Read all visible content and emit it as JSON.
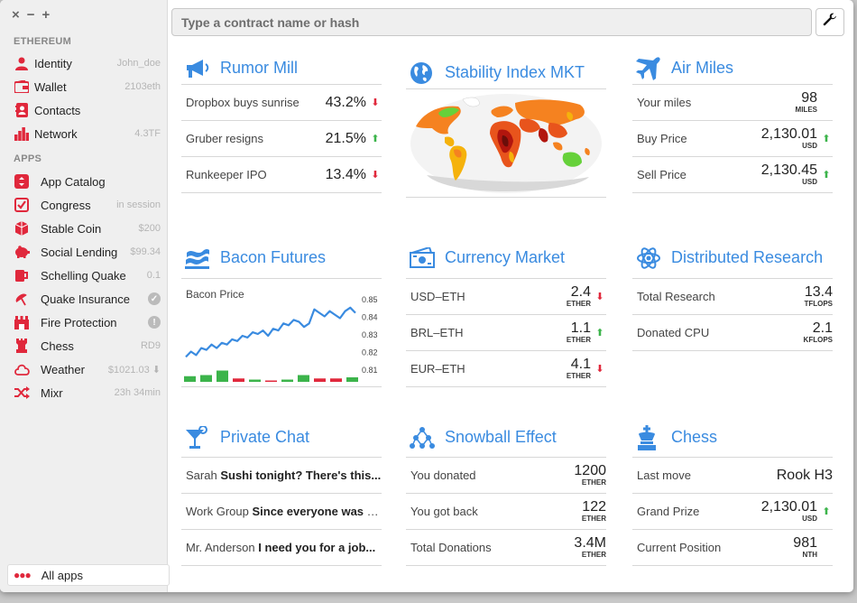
{
  "window": {
    "controls": [
      "×",
      "−",
      "+"
    ]
  },
  "sidebar": {
    "ethereum_title": "ETHEREUM",
    "eth_items": [
      {
        "label": "Identity",
        "value": "John_doe",
        "icon": "person-icon"
      },
      {
        "label": "Wallet",
        "value": "2103eth",
        "icon": "wallet-icon"
      },
      {
        "label": "Contacts",
        "value": "",
        "icon": "contacts-icon"
      },
      {
        "label": "Network",
        "value": "4.3TF",
        "icon": "bars-icon"
      }
    ],
    "apps_title": "APPS",
    "app_items": [
      {
        "label": "App Catalog",
        "value": "",
        "icon": "catalog-icon"
      },
      {
        "label": "Congress",
        "value": "in session",
        "icon": "check-icon"
      },
      {
        "label": "Stable Coin",
        "value": "$200",
        "icon": "coin-icon"
      },
      {
        "label": "Social Lending",
        "value": "$99.34",
        "icon": "piggy-icon"
      },
      {
        "label": "Schelling Quake",
        "value": "0.1",
        "icon": "mug-icon"
      },
      {
        "label": "Quake Insurance",
        "value": "✓",
        "icon": "umbrella-icon"
      },
      {
        "label": "Fire Protection",
        "value": "!",
        "icon": "fire-icon"
      },
      {
        "label": "Chess",
        "value": "RD9",
        "icon": "rook-icon"
      },
      {
        "label": "Weather",
        "value": "$1021.03 ⬇",
        "icon": "cloud-icon"
      },
      {
        "label": "Mixr",
        "value": "23h 34min",
        "icon": "shuffle-icon"
      }
    ],
    "all_apps_label": "All apps"
  },
  "search": {
    "placeholder": "Type a contract name or hash"
  },
  "panels": {
    "rumor": {
      "title": "Rumor Mill",
      "rows": [
        {
          "label": "Dropbox buys sunrise",
          "value": "43.2%",
          "dir": "down"
        },
        {
          "label": "Gruber resigns",
          "value": "21.5%",
          "dir": "up"
        },
        {
          "label": "Runkeeper IPO",
          "value": "13.4%",
          "dir": "down"
        }
      ]
    },
    "stability": {
      "title": "Stability Index MKT"
    },
    "airmiles": {
      "title": "Air Miles",
      "rows": [
        {
          "label": "Your miles",
          "value": "98",
          "unit": "MILES",
          "dir": ""
        },
        {
          "label": "Buy Price",
          "value": "2,130.01",
          "unit": "USD",
          "dir": "up"
        },
        {
          "label": "Sell Price",
          "value": "2,130.45",
          "unit": "USD",
          "dir": "up"
        }
      ]
    },
    "bacon": {
      "title": "Bacon Futures",
      "label": "Bacon Price",
      "ticks": [
        "0.85",
        "0.84",
        "0.83",
        "0.82",
        "0.81"
      ],
      "line": [
        0.817,
        0.82,
        0.818,
        0.822,
        0.821,
        0.824,
        0.822,
        0.825,
        0.824,
        0.827,
        0.826,
        0.829,
        0.828,
        0.831,
        0.83,
        0.832,
        0.829,
        0.833,
        0.832,
        0.836,
        0.835,
        0.838,
        0.837,
        0.834,
        0.836,
        0.844,
        0.842,
        0.84,
        0.843,
        0.841,
        0.839,
        0.843,
        0.845,
        0.842
      ],
      "bars": [
        {
          "v": 5,
          "c": "#3cb44b"
        },
        {
          "v": 6,
          "c": "#3cb44b"
        },
        {
          "v": 10,
          "c": "#3cb44b"
        },
        {
          "v": -3,
          "c": "#e0283c"
        },
        {
          "v": 2,
          "c": "#3cb44b"
        },
        {
          "v": -1,
          "c": "#e0283c"
        },
        {
          "v": 2,
          "c": "#3cb44b"
        },
        {
          "v": 6,
          "c": "#3cb44b"
        },
        {
          "v": -3,
          "c": "#e0283c"
        },
        {
          "v": -3,
          "c": "#e0283c"
        },
        {
          "v": 4,
          "c": "#3cb44b"
        }
      ]
    },
    "currency": {
      "title": "Currency Market",
      "rows": [
        {
          "label": "USD–ETH",
          "value": "2.4",
          "unit": "ETHER",
          "dir": "down"
        },
        {
          "label": "BRL–ETH",
          "value": "1.1",
          "unit": "ETHER",
          "dir": "up"
        },
        {
          "label": "EUR–ETH",
          "value": "4.1",
          "unit": "ETHER",
          "dir": "down"
        }
      ]
    },
    "research": {
      "title": "Distributed Research",
      "rows": [
        {
          "label": "Total Research",
          "value": "13.4",
          "unit": "TFLOPS",
          "dir": ""
        },
        {
          "label": "Donated CPU",
          "value": "2.1",
          "unit": "KFLOPS",
          "dir": ""
        }
      ]
    },
    "chat": {
      "title": "Private Chat",
      "rows": [
        {
          "from": "Sarah",
          "msg": "Sushi tonight? There's this..."
        },
        {
          "from": "Work Group",
          "msg": "Since everyone was so..."
        },
        {
          "from": "Mr. Anderson",
          "msg": "I need you for a job..."
        }
      ]
    },
    "snowball": {
      "title": "Snowball Effect",
      "rows": [
        {
          "label": "You donated",
          "value": "1200",
          "unit": "ETHER"
        },
        {
          "label": "You got back",
          "value": "122",
          "unit": "ETHER"
        },
        {
          "label": "Total Donations",
          "value": "3.4M",
          "unit": "ETHER"
        }
      ]
    },
    "chess": {
      "title": "Chess",
      "last_move_label": "Last move",
      "last_move_value": "Rook H3",
      "rows": [
        {
          "label": "Grand Prize",
          "value": "2,130.01",
          "unit": "USD",
          "dir": "up"
        },
        {
          "label": "Current Position",
          "value": "981",
          "unit": "NTH",
          "dir": ""
        }
      ]
    }
  },
  "colors": {
    "accent": "#3a8be0",
    "brand_red": "#e0283c",
    "up": "#3cb44b",
    "down": "#e0283c"
  }
}
